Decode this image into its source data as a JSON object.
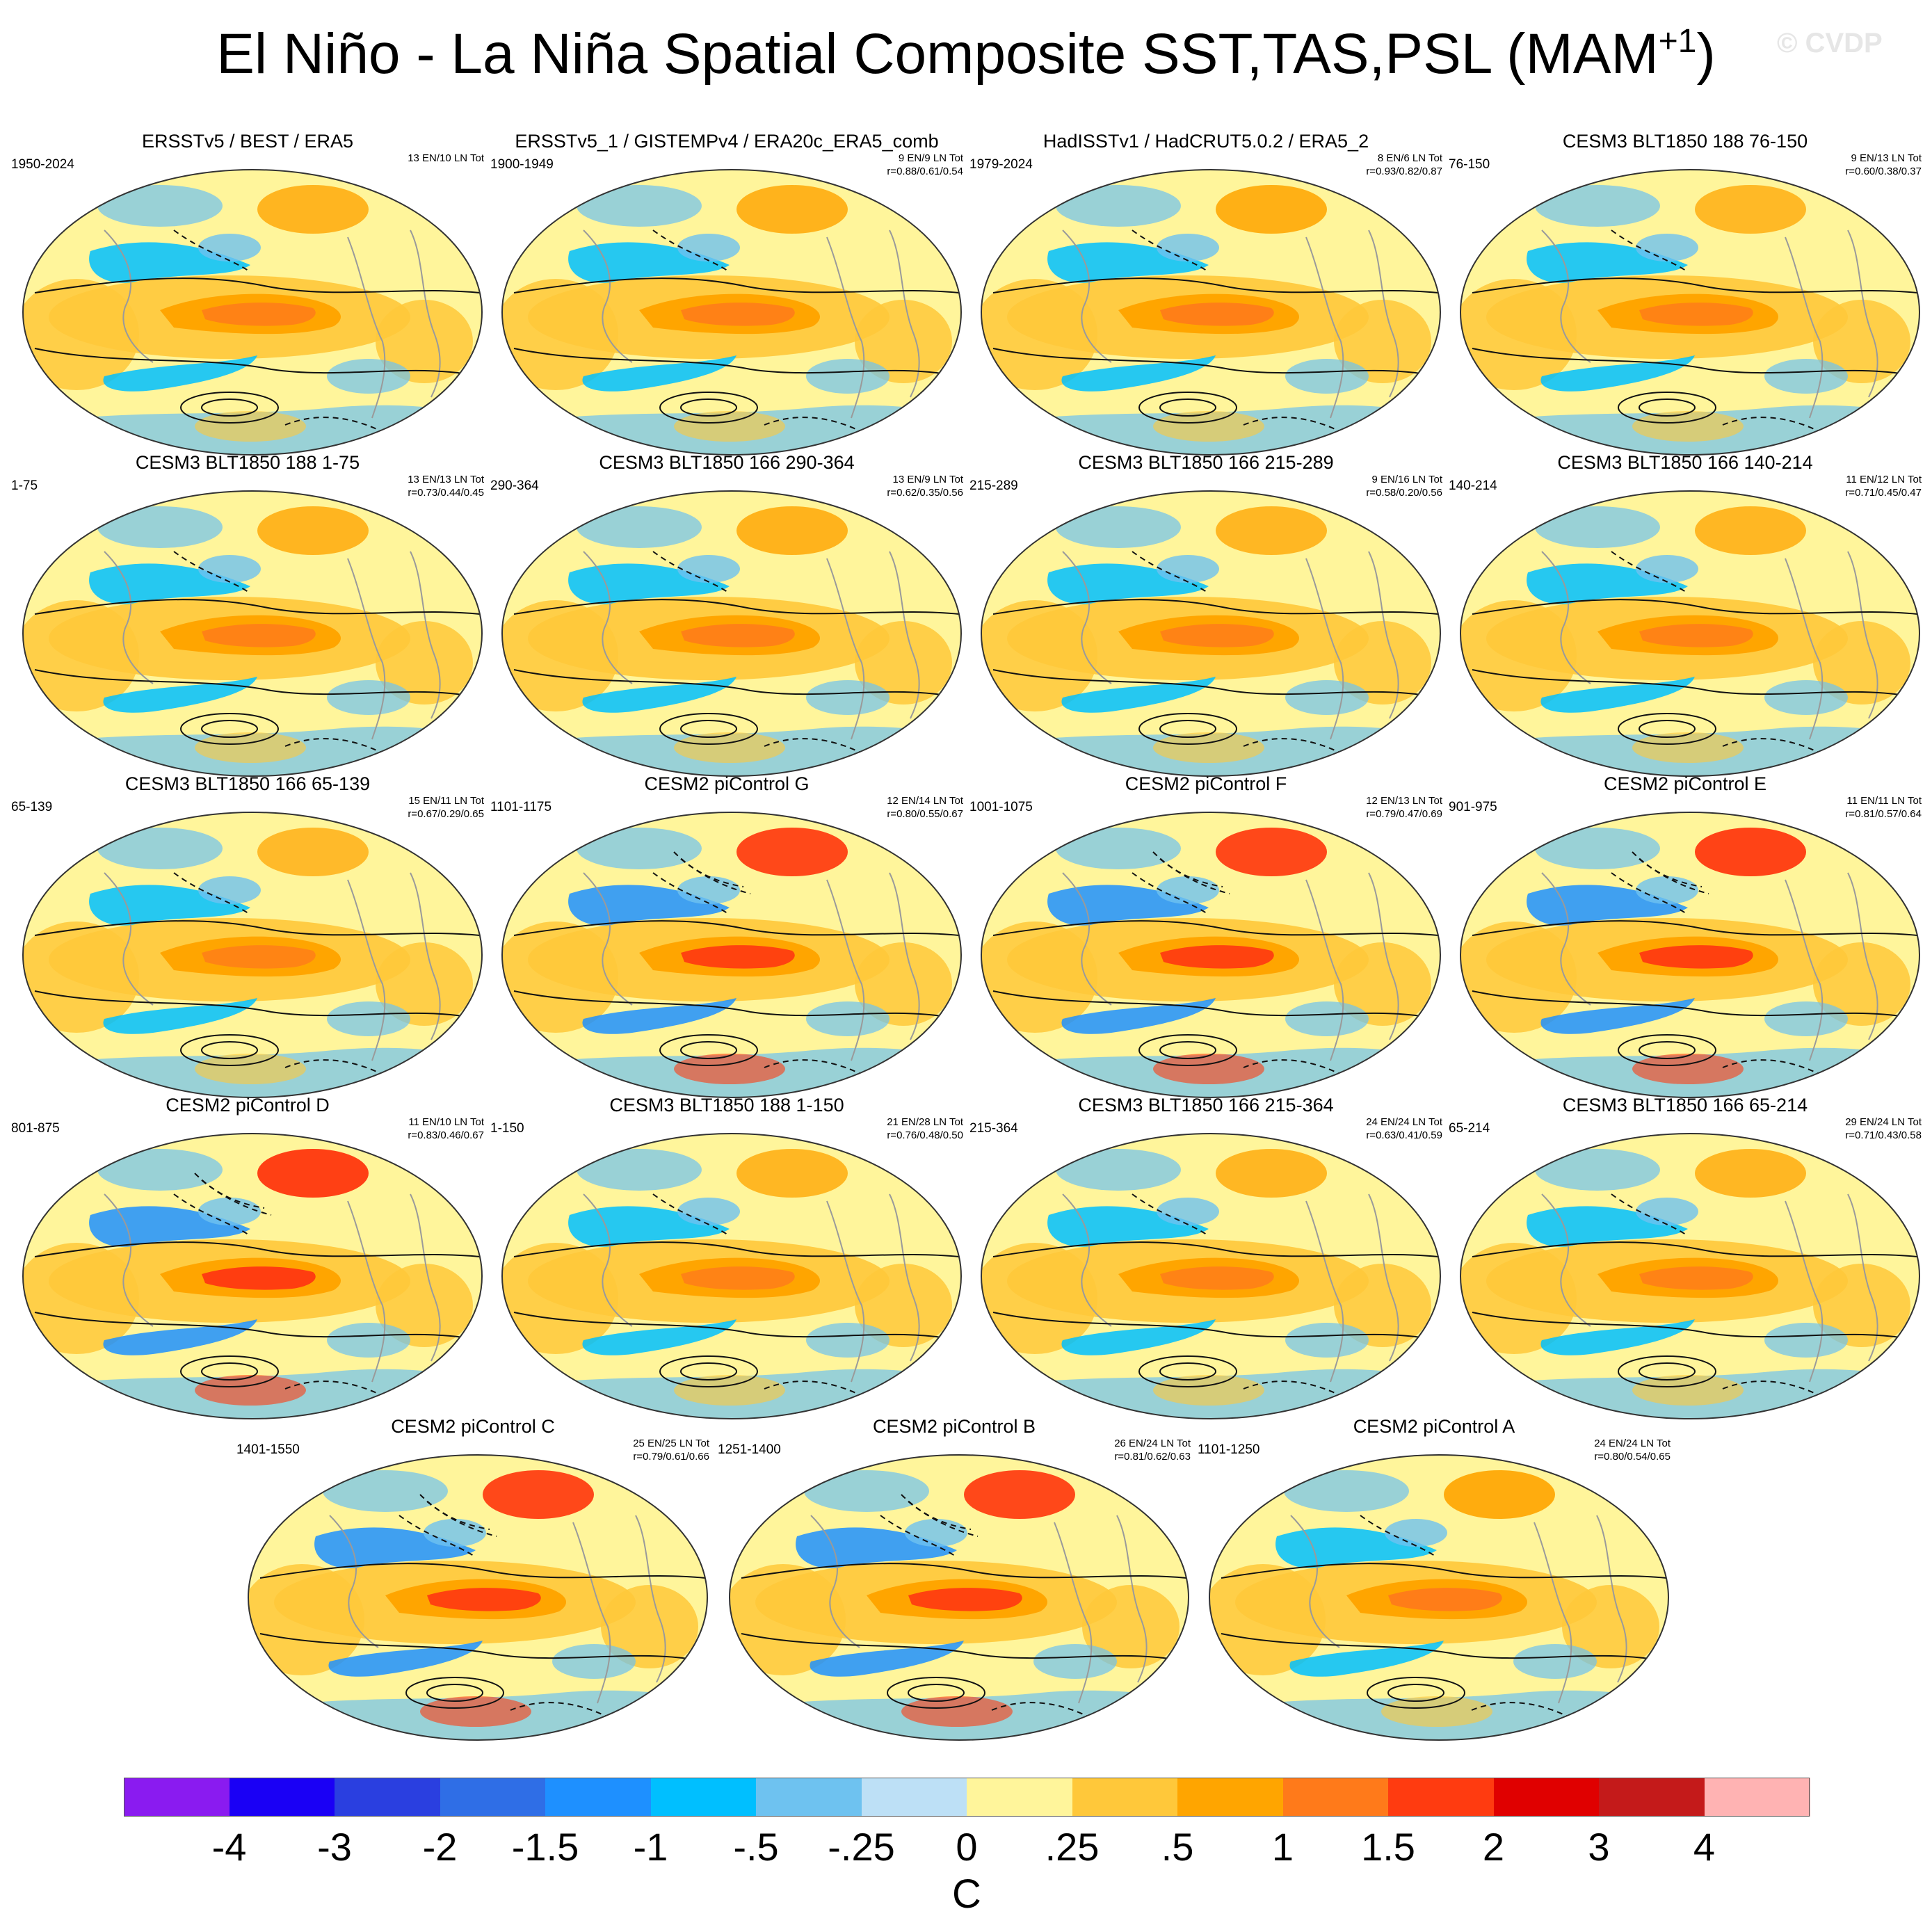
{
  "title": "El Niño - La Niña Spatial Composite SST,TAS,PSL (MAM",
  "title_superscript": "+1",
  "title_close": ")",
  "watermark": "© CVDP",
  "colors": {
    "scale": [
      "#8a1bf0",
      "#1a00f5",
      "#2a3fe0",
      "#2f6ee6",
      "#1e90ff",
      "#00bfff",
      "#6ec2f0",
      "#bde0f6",
      "#fff59b",
      "#ffc83a",
      "#ffa500",
      "#ff7a1a",
      "#ff3b10",
      "#e00000",
      "#c41a1a",
      "#ffb3b3"
    ],
    "ocean_base": "#fff59b",
    "land": "#ffffff"
  },
  "panels": [
    {
      "title": "ERSSTv5 / BEST / ERA5",
      "years": "1950-2024",
      "counts": "13 EN/10 LN Tot",
      "stats": "",
      "pattern": 0.55
    },
    {
      "title": "ERSSTv5_1 / GISTEMPv4 / ERA20c_ERA5_comb",
      "years": "1900-1949",
      "counts": "9 EN/9 LN Tot",
      "stats": "r=0.88/0.61/0.54",
      "pattern": 0.6
    },
    {
      "title": "HadISSTv1 / HadCRUT5.0.2 / ERA5_2",
      "years": "1979-2024",
      "counts": "8 EN/6 LN Tot",
      "stats": "r=0.93/0.82/0.87",
      "pattern": 0.7
    },
    {
      "title": "CESM3 BLT1850 188 76-150",
      "years": "76-150",
      "counts": "9 EN/13 LN Tot",
      "stats": "r=0.60/0.38/0.37",
      "pattern": 0.45
    },
    {
      "title": "CESM3 BLT1850 188 1-75",
      "years": "1-75",
      "counts": "13 EN/13 LN Tot",
      "stats": "r=0.73/0.44/0.45",
      "pattern": 0.55
    },
    {
      "title": "CESM3 BLT1850 166 290-364",
      "years": "290-364",
      "counts": "13 EN/9 LN Tot",
      "stats": "r=0.62/0.35/0.56",
      "pattern": 0.6
    },
    {
      "title": "CESM3 BLT1850 166 215-289",
      "years": "215-289",
      "counts": "9 EN/16 LN Tot",
      "stats": "r=0.58/0.20/0.56",
      "pattern": 0.5
    },
    {
      "title": "CESM3 BLT1850 166 140-214",
      "years": "140-214",
      "counts": "11 EN/12 LN Tot",
      "stats": "r=0.71/0.45/0.47",
      "pattern": 0.5
    },
    {
      "title": "CESM3 BLT1850 166 65-139",
      "years": "65-139",
      "counts": "15 EN/11 LN Tot",
      "stats": "r=0.67/0.29/0.65",
      "pattern": 0.4
    },
    {
      "title": "CESM2 piControl G",
      "years": "1101-1175",
      "counts": "12 EN/14 LN Tot",
      "stats": "r=0.80/0.55/0.67",
      "pattern": 0.85
    },
    {
      "title": "CESM2 piControl F",
      "years": "1001-1075",
      "counts": "12 EN/13 LN Tot",
      "stats": "r=0.79/0.47/0.69",
      "pattern": 0.85
    },
    {
      "title": "CESM2 piControl E",
      "years": "901-975",
      "counts": "11 EN/11 LN Tot",
      "stats": "r=0.81/0.57/0.64",
      "pattern": 0.9
    },
    {
      "title": "CESM2 piControl D",
      "years": "801-875",
      "counts": "11 EN/10 LN Tot",
      "stats": "r=0.83/0.46/0.67",
      "pattern": 0.95
    },
    {
      "title": "CESM3 BLT1850 188 1-150",
      "years": "1-150",
      "counts": "21 EN/28 LN Tot",
      "stats": "r=0.76/0.48/0.50",
      "pattern": 0.5
    },
    {
      "title": "CESM3 BLT1850 166 215-364",
      "years": "215-364",
      "counts": "24 EN/24 LN Tot",
      "stats": "r=0.63/0.41/0.59",
      "pattern": 0.5
    },
    {
      "title": "CESM3 BLT1850 166 65-214",
      "years": "65-214",
      "counts": "29 EN/24 LN Tot",
      "stats": "r=0.71/0.43/0.58",
      "pattern": 0.5
    },
    {
      "title": "CESM2 piControl C",
      "years": "1401-1550",
      "counts": "25 EN/25 LN Tot",
      "stats": "r=0.79/0.61/0.66",
      "pattern": 0.85
    },
    {
      "title": "CESM2 piControl B",
      "years": "1251-1400",
      "counts": "26 EN/24 LN Tot",
      "stats": "r=0.81/0.62/0.63",
      "pattern": 0.85
    },
    {
      "title": "CESM2 piControl A",
      "years": "1101-1250",
      "counts": "24 EN/24 LN Tot",
      "stats": "r=0.80/0.54/0.65",
      "pattern": 0.8
    }
  ],
  "colorbar": {
    "labels": [
      "-4",
      "-3",
      "-2",
      "-1.5",
      "-1",
      "-.5",
      "-.25",
      "0",
      ".25",
      ".5",
      "1",
      "1.5",
      "2",
      "3",
      "4"
    ],
    "units": "C"
  }
}
